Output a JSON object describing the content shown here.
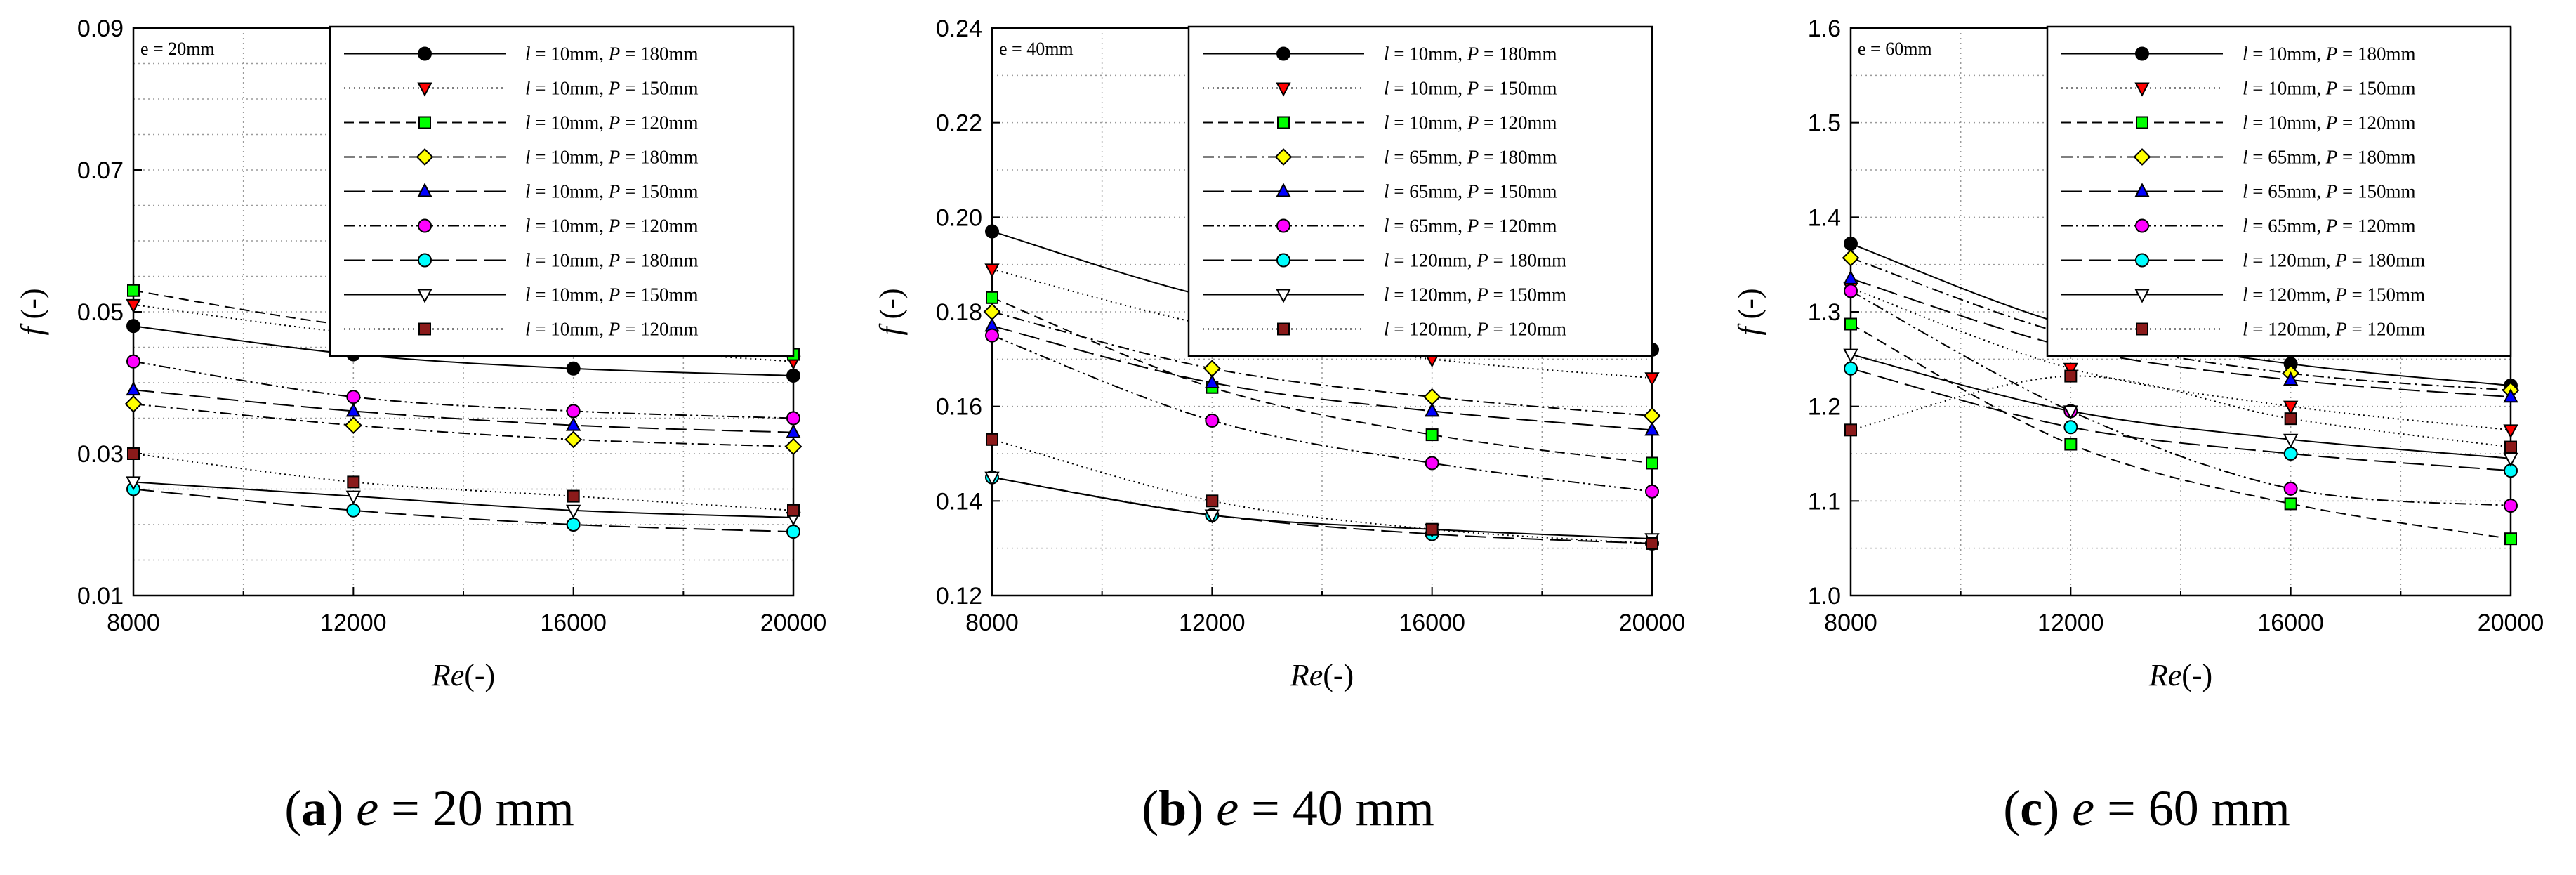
{
  "chart_data": [
    {
      "type": "line",
      "caption": {
        "letter": "a",
        "var": "e",
        "rest": " = 20 mm"
      },
      "annotation": "e = 20mm",
      "xlabel": "Re(-)",
      "ylabel": "f (-)",
      "x_ticks": [
        "8000",
        "12000",
        "16000",
        "20000"
      ],
      "y_ticks": [
        "0.01",
        "0.03",
        "0.05",
        "0.07",
        "0.09"
      ],
      "xlim": [
        8000,
        20000
      ],
      "ylim": [
        0.01,
        0.09
      ],
      "x_minor_step": 2000,
      "y_minor_step": 0.005,
      "grid": true,
      "legend_position": "top-right",
      "x": [
        8000,
        12000,
        16000,
        20000
      ],
      "series": [
        {
          "label_l": "10mm",
          "label_P": "180mm",
          "marker": "circle",
          "color": "#000000",
          "dash": "solid",
          "values": [
            0.048,
            0.044,
            0.042,
            0.041
          ]
        },
        {
          "label_l": "10mm",
          "label_P": "150mm",
          "marker": "triangle-down",
          "color": "#ff0000",
          "dash": "dotted",
          "values": [
            0.051,
            0.047,
            0.045,
            0.043
          ]
        },
        {
          "label_l": "10mm",
          "label_P": "120mm",
          "marker": "square",
          "color": "#00ff00",
          "dash": "dashed",
          "values": [
            0.053,
            0.048,
            0.046,
            0.044
          ]
        },
        {
          "label_l": "10mm",
          "label_P": "180mm",
          "marker": "diamond",
          "color": "#ffff00",
          "dash": "dashdot",
          "values": [
            0.037,
            0.034,
            0.032,
            0.031
          ]
        },
        {
          "label_l": "10mm",
          "label_P": "150mm",
          "marker": "triangle-up",
          "color": "#0000ff",
          "dash": "longdash",
          "values": [
            0.039,
            0.036,
            0.034,
            0.033
          ]
        },
        {
          "label_l": "10mm",
          "label_P": "120mm",
          "marker": "circle",
          "color": "#ff00ff",
          "dash": "dashdotdot",
          "values": [
            0.043,
            0.038,
            0.036,
            0.035
          ]
        },
        {
          "label_l": "10mm",
          "label_P": "180mm",
          "marker": "circle",
          "color": "#00ffff",
          "dash": "longdash",
          "values": [
            0.025,
            0.022,
            0.02,
            0.019
          ]
        },
        {
          "label_l": "10mm",
          "label_P": "150mm",
          "marker": "triangle-down",
          "color": "#ffffff",
          "dash": "solid",
          "values": [
            0.026,
            0.024,
            0.022,
            0.021
          ]
        },
        {
          "label_l": "10mm",
          "label_P": "120mm",
          "marker": "square",
          "color": "#8b1a1a",
          "dash": "dotted",
          "values": [
            0.03,
            0.026,
            0.024,
            0.022
          ]
        }
      ]
    },
    {
      "type": "line",
      "caption": {
        "letter": "b",
        "var": "e",
        "rest": " = 40 mm"
      },
      "annotation": "e = 40mm",
      "xlabel": "Re(-)",
      "ylabel": "f (-)",
      "x_ticks": [
        "8000",
        "12000",
        "16000",
        "20000"
      ],
      "y_ticks": [
        "0.12",
        "0.14",
        "0.16",
        "0.18",
        "0.20",
        "0.22",
        "0.24"
      ],
      "xlim": [
        8000,
        20000
      ],
      "ylim": [
        0.12,
        0.24
      ],
      "x_minor_step": 2000,
      "y_minor_step": 0.01,
      "grid": true,
      "legend_position": "top-right",
      "x": [
        8000,
        12000,
        16000,
        20000
      ],
      "series": [
        {
          "label_l": "10mm",
          "label_P": "180mm",
          "marker": "circle",
          "color": "#000000",
          "dash": "solid",
          "values": [
            0.197,
            0.183,
            0.176,
            0.172
          ]
        },
        {
          "label_l": "10mm",
          "label_P": "150mm",
          "marker": "triangle-down",
          "color": "#ff0000",
          "dash": "dotted",
          "values": [
            0.189,
            0.177,
            0.17,
            0.166
          ]
        },
        {
          "label_l": "10mm",
          "label_P": "120mm",
          "marker": "square",
          "color": "#00ff00",
          "dash": "dashed",
          "values": [
            0.183,
            0.164,
            0.154,
            0.148
          ]
        },
        {
          "label_l": "65mm",
          "label_P": "180mm",
          "marker": "diamond",
          "color": "#ffff00",
          "dash": "dashdot",
          "values": [
            0.18,
            0.168,
            0.162,
            0.158
          ]
        },
        {
          "label_l": "65mm",
          "label_P": "150mm",
          "marker": "triangle-up",
          "color": "#0000ff",
          "dash": "longdash",
          "values": [
            0.177,
            0.165,
            0.159,
            0.155
          ]
        },
        {
          "label_l": "65mm",
          "label_P": "120mm",
          "marker": "circle",
          "color": "#ff00ff",
          "dash": "dashdotdot",
          "values": [
            0.175,
            0.157,
            0.148,
            0.142
          ]
        },
        {
          "label_l": "120mm",
          "label_P": "180mm",
          "marker": "circle",
          "color": "#00ffff",
          "dash": "longdash",
          "values": [
            0.145,
            0.137,
            0.133,
            0.131
          ]
        },
        {
          "label_l": "120mm",
          "label_P": "150mm",
          "marker": "triangle-down",
          "color": "#ffffff",
          "dash": "solid",
          "values": [
            0.145,
            0.137,
            0.134,
            0.132
          ]
        },
        {
          "label_l": "120mm",
          "label_P": "120mm",
          "marker": "square",
          "color": "#8b1a1a",
          "dash": "dotted",
          "values": [
            0.153,
            0.14,
            0.134,
            0.131
          ]
        }
      ]
    },
    {
      "type": "line",
      "caption": {
        "letter": "c",
        "var": "e",
        "rest": " = 60 mm"
      },
      "annotation": "e = 60mm",
      "xlabel": "Re(-)",
      "ylabel": "f (-)",
      "x_ticks": [
        "8000",
        "12000",
        "16000",
        "20000"
      ],
      "y_ticks": [
        "1.0",
        "1.1",
        "1.2",
        "1.3",
        "1.4",
        "1.5",
        "1.6"
      ],
      "xlim": [
        8000,
        20000
      ],
      "ylim": [
        1.0,
        1.6
      ],
      "x_minor_step": 2000,
      "y_minor_step": 0.05,
      "grid": true,
      "legend_position": "top-right",
      "x": [
        8000,
        12000,
        16000,
        20000
      ],
      "series": [
        {
          "label_l": "10mm",
          "label_P": "180mm",
          "marker": "circle",
          "color": "#000000",
          "dash": "solid",
          "values": [
            1.372,
            1.285,
            1.245,
            1.222
          ]
        },
        {
          "label_l": "10mm",
          "label_P": "150mm",
          "marker": "triangle-down",
          "color": "#ff0000",
          "dash": "dotted",
          "values": [
            1.325,
            1.24,
            1.2,
            1.175
          ]
        },
        {
          "label_l": "10mm",
          "label_P": "120mm",
          "marker": "square",
          "color": "#00ff00",
          "dash": "dashed",
          "values": [
            1.287,
            1.16,
            1.097,
            1.06
          ]
        },
        {
          "label_l": "65mm",
          "label_P": "180mm",
          "marker": "diamond",
          "color": "#ffff00",
          "dash": "dashdot",
          "values": [
            1.357,
            1.275,
            1.235,
            1.217
          ]
        },
        {
          "label_l": "65mm",
          "label_P": "150mm",
          "marker": "triangle-up",
          "color": "#0000ff",
          "dash": "longdash",
          "values": [
            1.335,
            1.262,
            1.228,
            1.21
          ]
        },
        {
          "label_l": "65mm",
          "label_P": "120mm",
          "marker": "circle",
          "color": "#ff00ff",
          "dash": "dashdotdot",
          "values": [
            1.322,
            1.195,
            1.113,
            1.095
          ]
        },
        {
          "label_l": "120mm",
          "label_P": "180mm",
          "marker": "circle",
          "color": "#00ffff",
          "dash": "longdash",
          "values": [
            1.24,
            1.178,
            1.15,
            1.132
          ]
        },
        {
          "label_l": "120mm",
          "label_P": "150mm",
          "marker": "triangle-down",
          "color": "#ffffff",
          "dash": "solid",
          "values": [
            1.255,
            1.195,
            1.165,
            1.145
          ]
        },
        {
          "label_l": "120mm",
          "label_P": "120mm",
          "marker": "square",
          "color": "#8b1a1a",
          "dash": "dotted",
          "values": [
            1.175,
            1.232,
            1.187,
            1.157
          ]
        }
      ]
    }
  ]
}
